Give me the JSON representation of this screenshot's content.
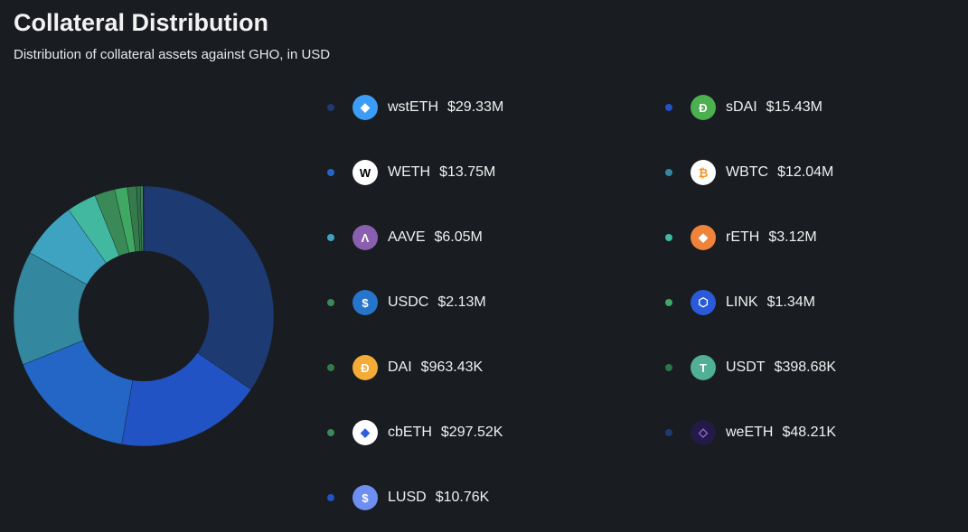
{
  "chart_data": {
    "type": "pie",
    "variant": "donut",
    "title": "Collateral Distribution",
    "subtitle": "Distribution of collateral assets against GHO, in USD",
    "legend_position": "right",
    "series": [
      {
        "name": "wstETH",
        "label": "$29.33M",
        "value": 29330000,
        "color": "#1e3a72",
        "icon": "wsteth-icon",
        "icon_color": "#3b9df5"
      },
      {
        "name": "sDAI",
        "label": "$15.43M",
        "value": 15430000,
        "color": "#2253c4",
        "icon": "sdai-icon",
        "icon_color": "#4caf50"
      },
      {
        "name": "WETH",
        "label": "$13.75M",
        "value": 13750000,
        "color": "#2366c6",
        "icon": "weth-icon",
        "icon_color": "#ffffff"
      },
      {
        "name": "WBTC",
        "label": "$12.04M",
        "value": 12040000,
        "color": "#33879e",
        "icon": "wbtc-icon",
        "icon_color": "#ffffff"
      },
      {
        "name": "AAVE",
        "label": "$6.05M",
        "value": 6050000,
        "color": "#3ea3c0",
        "icon": "aave-icon",
        "icon_color": "#8a5fb0"
      },
      {
        "name": "rETH",
        "label": "$3.12M",
        "value": 3120000,
        "color": "#42b8a0",
        "icon": "reth-icon",
        "icon_color": "#f0833a"
      },
      {
        "name": "USDC",
        "label": "$2.13M",
        "value": 2130000,
        "color": "#3a8a58",
        "icon": "usdc-icon",
        "icon_color": "#2775ca"
      },
      {
        "name": "LINK",
        "label": "$1.34M",
        "value": 1340000,
        "color": "#3fa862",
        "icon": "link-icon",
        "icon_color": "#2a5ada"
      },
      {
        "name": "DAI",
        "label": "$963.43K",
        "value": 963430,
        "color": "#357a4a",
        "icon": "dai-icon",
        "icon_color": "#f5ac37"
      },
      {
        "name": "USDT",
        "label": "$398.68K",
        "value": 398680,
        "color": "#2e7448",
        "icon": "usdt-icon",
        "icon_color": "#50af95"
      },
      {
        "name": "cbETH",
        "label": "$297.52K",
        "value": 297520,
        "color": "#3a8a58",
        "icon": "cbeth-icon",
        "icon_color": "#ffffff"
      },
      {
        "name": "weETH",
        "label": "$48.21K",
        "value": 48210,
        "color": "#1e3a72",
        "icon": "weeth-icon",
        "icon_color": "#231a45"
      },
      {
        "name": "LUSD",
        "label": "$10.76K",
        "value": 10760,
        "color": "#2253c4",
        "icon": "lusd-icon",
        "icon_color": "#6f8ff0"
      }
    ]
  }
}
